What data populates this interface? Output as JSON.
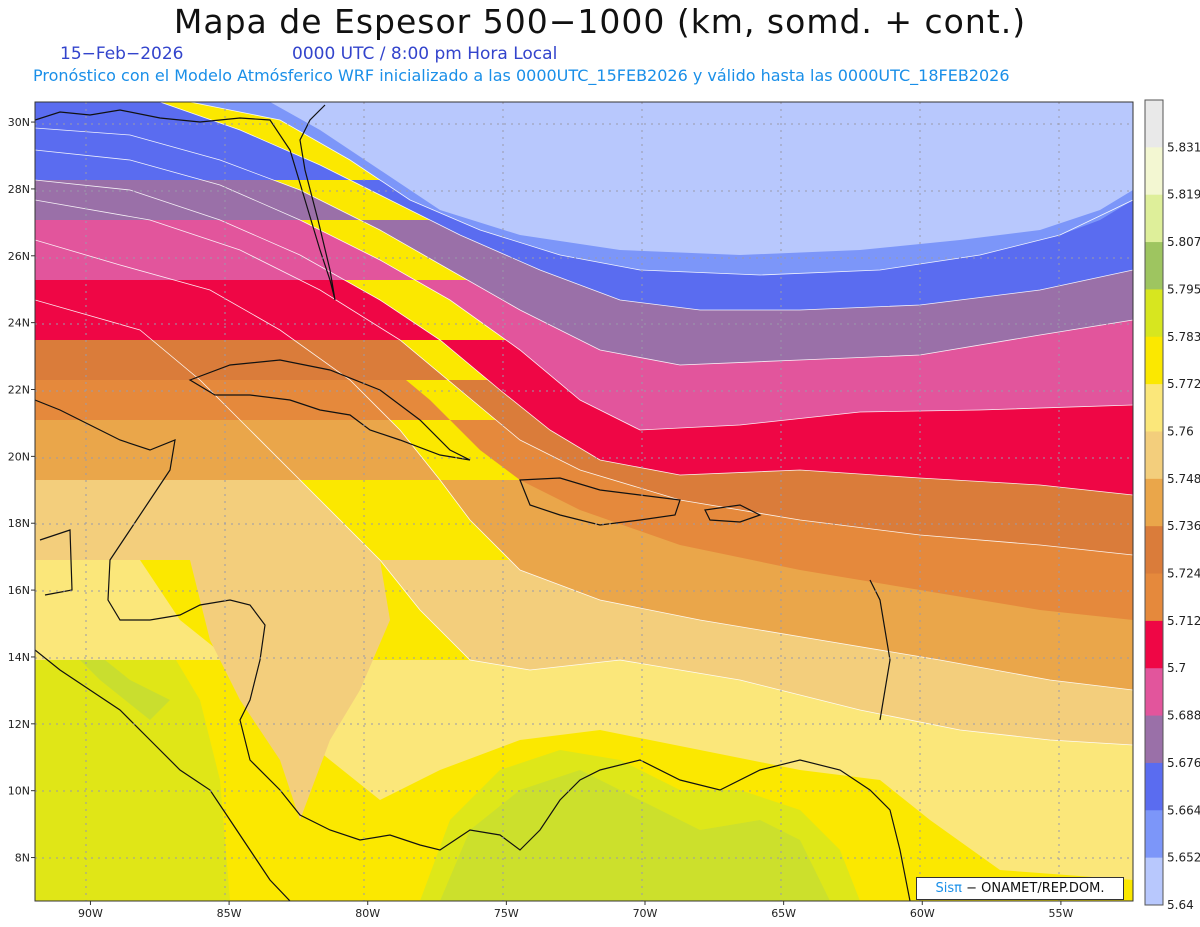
{
  "header": {
    "title": "Mapa de Espesor 500−1000 (km, somd. + cont.)",
    "date": "15−Feb−2026",
    "time": "0000 UTC / 8:00 pm Hora Local",
    "subtitle": "Pronóstico con el Modelo Atmósferico WRF inicializado a las 0000UTC_15FEB2026 y válido hasta las  0000UTC_18FEB2026"
  },
  "map": {
    "lon_range": [
      -92,
      -52.4
    ],
    "lat_range": [
      6.7,
      30.6
    ],
    "lat_ticks": [
      "30N",
      "28N",
      "26N",
      "24N",
      "22N",
      "20N",
      "18N",
      "16N",
      "14N",
      "12N",
      "10N",
      "8N"
    ],
    "lon_ticks": [
      "90W",
      "85W",
      "80W",
      "75W",
      "70W",
      "65W",
      "60W",
      "55W"
    ],
    "lat_values": [
      30,
      28,
      26,
      24,
      22,
      20,
      18,
      16,
      14,
      12,
      10,
      8
    ],
    "lon_values": [
      -90,
      -85,
      -80,
      -75,
      -70,
      -65,
      -60,
      -55
    ]
  },
  "colorbar": {
    "labels": [
      "5.831",
      "5.819",
      "5.807",
      "5.795",
      "5.783",
      "5.772",
      "5.76",
      "5.748",
      "5.736",
      "5.724",
      "5.712",
      "5.7",
      "5.688",
      "5.676",
      "5.664",
      "5.652",
      "5.64"
    ],
    "colors": [
      "#e9e9e9",
      "#f3f7d2",
      "#deef9a",
      "#9ec560",
      "#d7e61f",
      "#fbe800",
      "#fbe77a",
      "#f3ce7c",
      "#eaa64a",
      "#da7c3a",
      "#e5893c",
      "#ef0645",
      "#e2559c",
      "#9a70a8",
      "#5a6cf0",
      "#7c96f9",
      "#b8c8fd"
    ]
  },
  "credit": {
    "brand": "Sisπ",
    "text": "− ONAMET/REP.DOM."
  }
}
